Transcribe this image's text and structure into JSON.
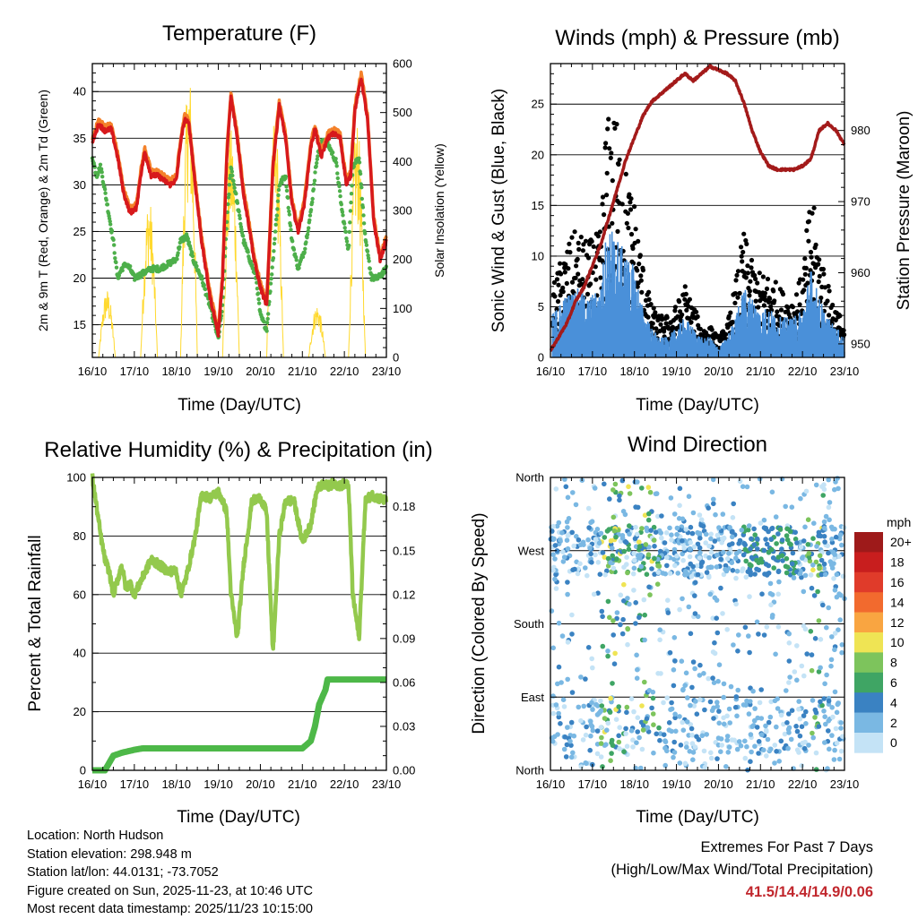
{
  "chart_data": [
    {
      "type": "line",
      "title": "Temperature (F)",
      "xlabel": "Time (Day/UTC)",
      "ylabel": "2m & 9m T (Red, Orange) & 2m Td (Green)",
      "ylabel_right": "Solar Insolation (Yellow)",
      "xticks": [
        "16/10",
        "17/10",
        "18/10",
        "19/10",
        "20/10",
        "21/10",
        "22/10",
        "23/10"
      ],
      "yticks": [
        "15",
        "20",
        "25",
        "30",
        "35",
        "40"
      ],
      "yticks_right": [
        "0",
        "100",
        "200",
        "300",
        "400",
        "500",
        "600"
      ],
      "ylim": [
        11.5,
        43.0
      ],
      "ylim_right": [
        0,
        600
      ],
      "series": [
        {
          "name": "2m T",
          "color": "#d7191c",
          "x": [
            0,
            0.15,
            0.3,
            0.45,
            0.6,
            0.75,
            0.9,
            1.05,
            1.15,
            1.25,
            1.4,
            1.55,
            1.7,
            1.85,
            2.0,
            2.1,
            2.2,
            2.3,
            2.45,
            2.6,
            2.8,
            3.0,
            3.1,
            3.2,
            3.3,
            3.45,
            3.6,
            3.75,
            3.85,
            4.0,
            4.15,
            4.3,
            4.45,
            4.6,
            4.75,
            4.9,
            5.05,
            5.2,
            5.3,
            5.45,
            5.6,
            5.75,
            5.9,
            6.05,
            6.15,
            6.25,
            6.4,
            6.55,
            6.7,
            6.85,
            7.0
          ],
          "y": [
            34.5,
            36.5,
            35.8,
            36.0,
            33.0,
            29.0,
            27.0,
            27.5,
            31.0,
            33.5,
            31.0,
            31.0,
            30.5,
            30.0,
            30.5,
            34.5,
            37.0,
            36.5,
            30.0,
            24.0,
            18.0,
            14.0,
            20.0,
            33.0,
            39.5,
            35.0,
            29.0,
            25.0,
            22.0,
            19.0,
            17.0,
            32.0,
            38.5,
            35.0,
            28.0,
            25.0,
            28.0,
            34.0,
            36.0,
            33.0,
            35.0,
            35.5,
            35.0,
            30.0,
            31.0,
            38.0,
            41.5,
            37.0,
            26.0,
            22.0,
            24.0
          ]
        },
        {
          "name": "9m T",
          "color": "#f4812a",
          "x": [
            0,
            0.15,
            0.3,
            0.45,
            0.6,
            0.75,
            0.9,
            1.05,
            1.15,
            1.25,
            1.4,
            1.55,
            1.7,
            1.85,
            2.0,
            2.1,
            2.2,
            2.3,
            2.45,
            2.6,
            2.8,
            3.0,
            3.1,
            3.2,
            3.3,
            3.45,
            3.6,
            3.75,
            3.85,
            4.0,
            4.15,
            4.3,
            4.45,
            4.6,
            4.75,
            4.9,
            5.05,
            5.2,
            5.3,
            5.45,
            5.6,
            5.75,
            5.9,
            6.05,
            6.15,
            6.25,
            6.4,
            6.55,
            6.7,
            6.85,
            7.0
          ],
          "y": [
            35.0,
            37.0,
            36.3,
            36.5,
            33.5,
            29.5,
            27.5,
            28.0,
            31.5,
            34.0,
            31.5,
            31.5,
            31.0,
            30.5,
            31.0,
            35.0,
            37.5,
            37.0,
            30.5,
            24.5,
            18.5,
            14.5,
            20.5,
            33.5,
            40.0,
            35.5,
            29.5,
            25.5,
            22.5,
            19.5,
            17.5,
            32.5,
            39.0,
            35.5,
            28.5,
            25.5,
            28.5,
            34.5,
            36.5,
            33.5,
            35.5,
            36.0,
            35.5,
            30.5,
            31.5,
            38.5,
            42.0,
            37.5,
            26.5,
            22.5,
            24.5
          ]
        },
        {
          "name": "2m Td",
          "color": "#4daf4a",
          "x": [
            0,
            0.1,
            0.2,
            0.35,
            0.5,
            0.6,
            0.7,
            0.8,
            0.9,
            1.0,
            1.2,
            1.4,
            1.6,
            1.8,
            2.0,
            2.1,
            2.25,
            2.4,
            2.6,
            2.8,
            3.0,
            3.1,
            3.2,
            3.3,
            3.45,
            3.6,
            3.75,
            3.9,
            4.0,
            4.15,
            4.3,
            4.45,
            4.6,
            4.75,
            4.9,
            5.05,
            5.2,
            5.35,
            5.5,
            5.65,
            5.8,
            5.95,
            6.1,
            6.2,
            6.35,
            6.5,
            6.65,
            6.8,
            7.0
          ],
          "y": [
            33.0,
            31.0,
            32.0,
            28.0,
            24.0,
            20.0,
            21.0,
            21.5,
            21.0,
            20.0,
            20.5,
            21.0,
            21.0,
            21.5,
            22.0,
            24.0,
            24.5,
            22.0,
            20.0,
            17.0,
            13.5,
            17.0,
            26.0,
            32.0,
            28.0,
            24.0,
            22.0,
            20.0,
            16.0,
            14.5,
            22.0,
            30.0,
            31.0,
            24.0,
            21.0,
            23.0,
            27.0,
            33.0,
            35.0,
            34.0,
            32.5,
            27.0,
            23.0,
            32.0,
            33.0,
            24.0,
            20.0,
            20.0,
            21.0
          ]
        },
        {
          "name": "Solar Insolation",
          "color": "#ffd92f",
          "axis": "right",
          "peaks": [
            {
              "day": 0.35,
              "max": 140
            },
            {
              "day": 1.35,
              "max": 330
            },
            {
              "day": 2.3,
              "max": 590
            },
            {
              "day": 3.3,
              "max": 470
            },
            {
              "day": 4.35,
              "max": 490
            },
            {
              "day": 5.35,
              "max": 110
            },
            {
              "day": 6.3,
              "max": 490
            }
          ]
        }
      ]
    },
    {
      "type": "scatter",
      "title": "Winds (mph) & Pressure (mb)",
      "xlabel": "Time (Day/UTC)",
      "ylabel": "Sonic Wind & Gust (Blue, Black)",
      "ylabel_right": "Station Pressure (Maroon)",
      "xticks": [
        "16/10",
        "17/10",
        "18/10",
        "19/10",
        "20/10",
        "21/10",
        "22/10",
        "23/10"
      ],
      "yticks": [
        "0",
        "5",
        "10",
        "15",
        "20",
        "25"
      ],
      "yticks_right": [
        "950",
        "960",
        "970",
        "980"
      ],
      "ylim": [
        0,
        29.0
      ],
      "ylim_right": [
        948.1,
        989.4
      ],
      "series": [
        {
          "name": "Gust",
          "color": "#000000",
          "envelope": {
            "x": [
              0,
              0.3,
              0.6,
              0.9,
              1.2,
              1.3,
              1.5,
              1.7,
              1.85,
              2.0,
              2.2,
              2.4,
              2.6,
              2.8,
              3.0,
              3.2,
              3.4,
              3.6,
              3.8,
              4.0,
              4.2,
              4.4,
              4.6,
              4.8,
              5.0,
              5.2,
              5.4,
              5.6,
              5.8,
              6.0,
              6.2,
              6.4,
              6.6,
              6.8,
              7.0
            ],
            "y": [
              6,
              10,
              12,
              11,
              12,
              22,
              24,
              20,
              17,
              15,
              9,
              5,
              4,
              4,
              5,
              7,
              5,
              3,
              3,
              2,
              3,
              7,
              12,
              9,
              8,
              8,
              7,
              6,
              6,
              8,
              16,
              11,
              7,
              5,
              3
            ]
          }
        },
        {
          "name": "Sonic Wind",
          "color": "#4a90d9",
          "envelope": {
            "x": [
              0,
              0.3,
              0.6,
              0.9,
              1.2,
              1.3,
              1.5,
              1.7,
              1.85,
              2.0,
              2.2,
              2.4,
              2.6,
              2.8,
              3.0,
              3.2,
              3.4,
              3.6,
              3.8,
              4.0,
              4.2,
              4.4,
              4.6,
              4.8,
              5.0,
              5.2,
              5.4,
              5.6,
              5.8,
              6.0,
              6.2,
              6.4,
              6.6,
              6.8,
              7.0
            ],
            "y": [
              4,
              6,
              7,
              6,
              7,
              12,
              13,
              11,
              10,
              9,
              5,
              3,
              2,
              2,
              3,
              4,
              3,
              2,
              2,
              1,
              2,
              4,
              7,
              6,
              5,
              5,
              4,
              4,
              4,
              5,
              9,
              6,
              4,
              3,
              2
            ]
          }
        },
        {
          "name": "Station Pressure",
          "color": "#a31a1a",
          "axis": "right",
          "x": [
            0,
            0.2,
            0.4,
            0.6,
            0.8,
            1.0,
            1.2,
            1.4,
            1.6,
            1.8,
            2.0,
            2.2,
            2.4,
            2.6,
            2.8,
            3.0,
            3.2,
            3.4,
            3.6,
            3.8,
            4.0,
            4.2,
            4.4,
            4.6,
            4.8,
            5.0,
            5.2,
            5.4,
            5.6,
            5.8,
            6.0,
            6.2,
            6.4,
            6.6,
            6.8,
            7.0
          ],
          "y": [
            949,
            951,
            953,
            956,
            958,
            961,
            964,
            968,
            972,
            976,
            979,
            982,
            984,
            985,
            986,
            987,
            988,
            987,
            988,
            989,
            988.5,
            988,
            987,
            984,
            980,
            977,
            975,
            974.5,
            974.5,
            974.5,
            975,
            976,
            980,
            981,
            980,
            978
          ]
        }
      ]
    },
    {
      "type": "line",
      "title": "Relative Humidity (%) & Precipitation (in)",
      "xlabel": "Time (Day/UTC)",
      "ylabel": "Percent & Total Rainfall",
      "xticks": [
        "16/10",
        "17/10",
        "18/10",
        "19/10",
        "20/10",
        "21/10",
        "22/10",
        "23/10"
      ],
      "yticks": [
        "0",
        "20",
        "40",
        "60",
        "80",
        "100"
      ],
      "yticks_right": [
        "0.00",
        "0.03",
        "0.06",
        "0.09",
        "0.12",
        "0.15",
        "0.18"
      ],
      "ylim": [
        0,
        100
      ],
      "ylim_right": [
        0,
        0.2
      ],
      "series": [
        {
          "name": "Relative Humidity",
          "color": "#93c94d",
          "x": [
            0,
            0.1,
            0.2,
            0.3,
            0.4,
            0.5,
            0.6,
            0.7,
            0.8,
            0.9,
            1.0,
            1.2,
            1.4,
            1.6,
            1.8,
            2.0,
            2.1,
            2.2,
            2.3,
            2.45,
            2.6,
            2.8,
            3.0,
            3.1,
            3.2,
            3.3,
            3.45,
            3.6,
            3.8,
            4.0,
            4.15,
            4.3,
            4.45,
            4.6,
            4.8,
            5.0,
            5.2,
            5.35,
            5.5,
            5.6,
            5.75,
            5.9,
            6.0,
            6.1,
            6.2,
            6.35,
            6.5,
            6.65,
            6.8,
            7.0
          ],
          "y": [
            100,
            90,
            80,
            72,
            68,
            60,
            65,
            70,
            62,
            64,
            60,
            66,
            72,
            70,
            68,
            68,
            60,
            64,
            70,
            80,
            94,
            93,
            95,
            92,
            88,
            60,
            45,
            70,
            92,
            93,
            88,
            40,
            80,
            92,
            92,
            78,
            84,
            96,
            98,
            97,
            98,
            97,
            98,
            97,
            60,
            45,
            92,
            94,
            93,
            92
          ]
        },
        {
          "name": "Total Rainfall",
          "color": "#4db848",
          "axis": "right",
          "x": [
            0,
            0.3,
            0.4,
            0.5,
            0.7,
            1.0,
            1.2,
            3.0,
            4.0,
            5.0,
            5.2,
            5.3,
            5.4,
            5.55,
            5.6,
            6.0,
            7.0
          ],
          "y": [
            0,
            0,
            0.005,
            0.01,
            0.012,
            0.014,
            0.015,
            0.015,
            0.015,
            0.015,
            0.02,
            0.03,
            0.045,
            0.055,
            0.062,
            0.062,
            0.062
          ]
        }
      ]
    },
    {
      "type": "scatter",
      "title": "Wind Direction",
      "xlabel": "Time (Day/UTC)",
      "ylabel": "Direction (Colored By Speed)",
      "xticks": [
        "16/10",
        "17/10",
        "18/10",
        "19/10",
        "20/10",
        "21/10",
        "22/10",
        "23/10"
      ],
      "yticks": [
        "North",
        "East",
        "South",
        "West",
        "North"
      ],
      "ylim": [
        0,
        360
      ],
      "colorbar": {
        "title": "mph",
        "labels": [
          "20+",
          "18",
          "16",
          "14",
          "12",
          "10",
          "8",
          "6",
          "4",
          "2",
          "0"
        ],
        "colors": [
          "#9e1a1a",
          "#c81e1e",
          "#e03b2a",
          "#f26a2e",
          "#f9a541",
          "#efe454",
          "#7dc45c",
          "#3fa564",
          "#3a82c2",
          "#7ab8e3",
          "#c4e3f6"
        ]
      }
    }
  ],
  "info": {
    "location": "Location: North Hudson",
    "elevation": "Station elevation: 298.948 m",
    "latlon": "Station lat/lon: 44.0131; -73.7052",
    "created": "Figure created on Sun, 2025-11-23, at 10:46 UTC",
    "recent": "Most recent data timestamp: 2025/11/23 10:15:00"
  },
  "extremes": {
    "line1": "Extremes For Past 7 Days",
    "line2": "(High/Low/Max Wind/Total Precipitation)",
    "values": "41.5/14.4/14.9/0.06"
  }
}
